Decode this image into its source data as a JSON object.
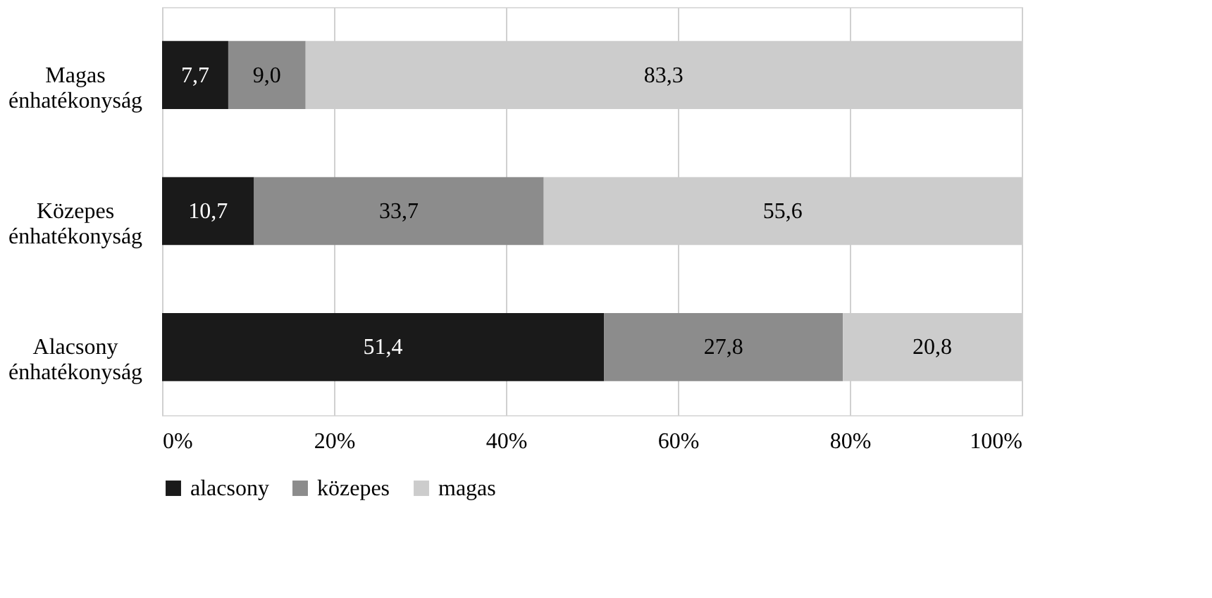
{
  "chart_data": {
    "type": "bar",
    "orientation": "horizontal",
    "stacked": true,
    "categories": [
      "Magas énhatékonyság",
      "Közepes énhatékonyság",
      "Alacsony énhatékonyság"
    ],
    "series": [
      {
        "name": "alacsony",
        "color": "#1a1a1a",
        "values": [
          7.7,
          10.7,
          51.4
        ],
        "value_labels": [
          "7,7",
          "10,7",
          "51,4"
        ]
      },
      {
        "name": "közepes",
        "color": "#8c8c8c",
        "values": [
          9.0,
          33.7,
          27.8
        ],
        "value_labels": [
          "9,0",
          "33,7",
          "27,8"
        ]
      },
      {
        "name": "magas",
        "color": "#cccccc",
        "values": [
          83.3,
          55.6,
          20.8
        ],
        "value_labels": [
          "83,3",
          "55,6",
          "20,8"
        ]
      }
    ],
    "xlim": [
      0,
      100
    ],
    "xticks": [
      {
        "value": 0,
        "label": "0%"
      },
      {
        "value": 20,
        "label": "20%"
      },
      {
        "value": 40,
        "label": "40%"
      },
      {
        "value": 60,
        "label": "60%"
      },
      {
        "value": 80,
        "label": "80%"
      },
      {
        "value": 100,
        "label": "100%"
      }
    ],
    "grid": "x",
    "legend": "bottom"
  }
}
